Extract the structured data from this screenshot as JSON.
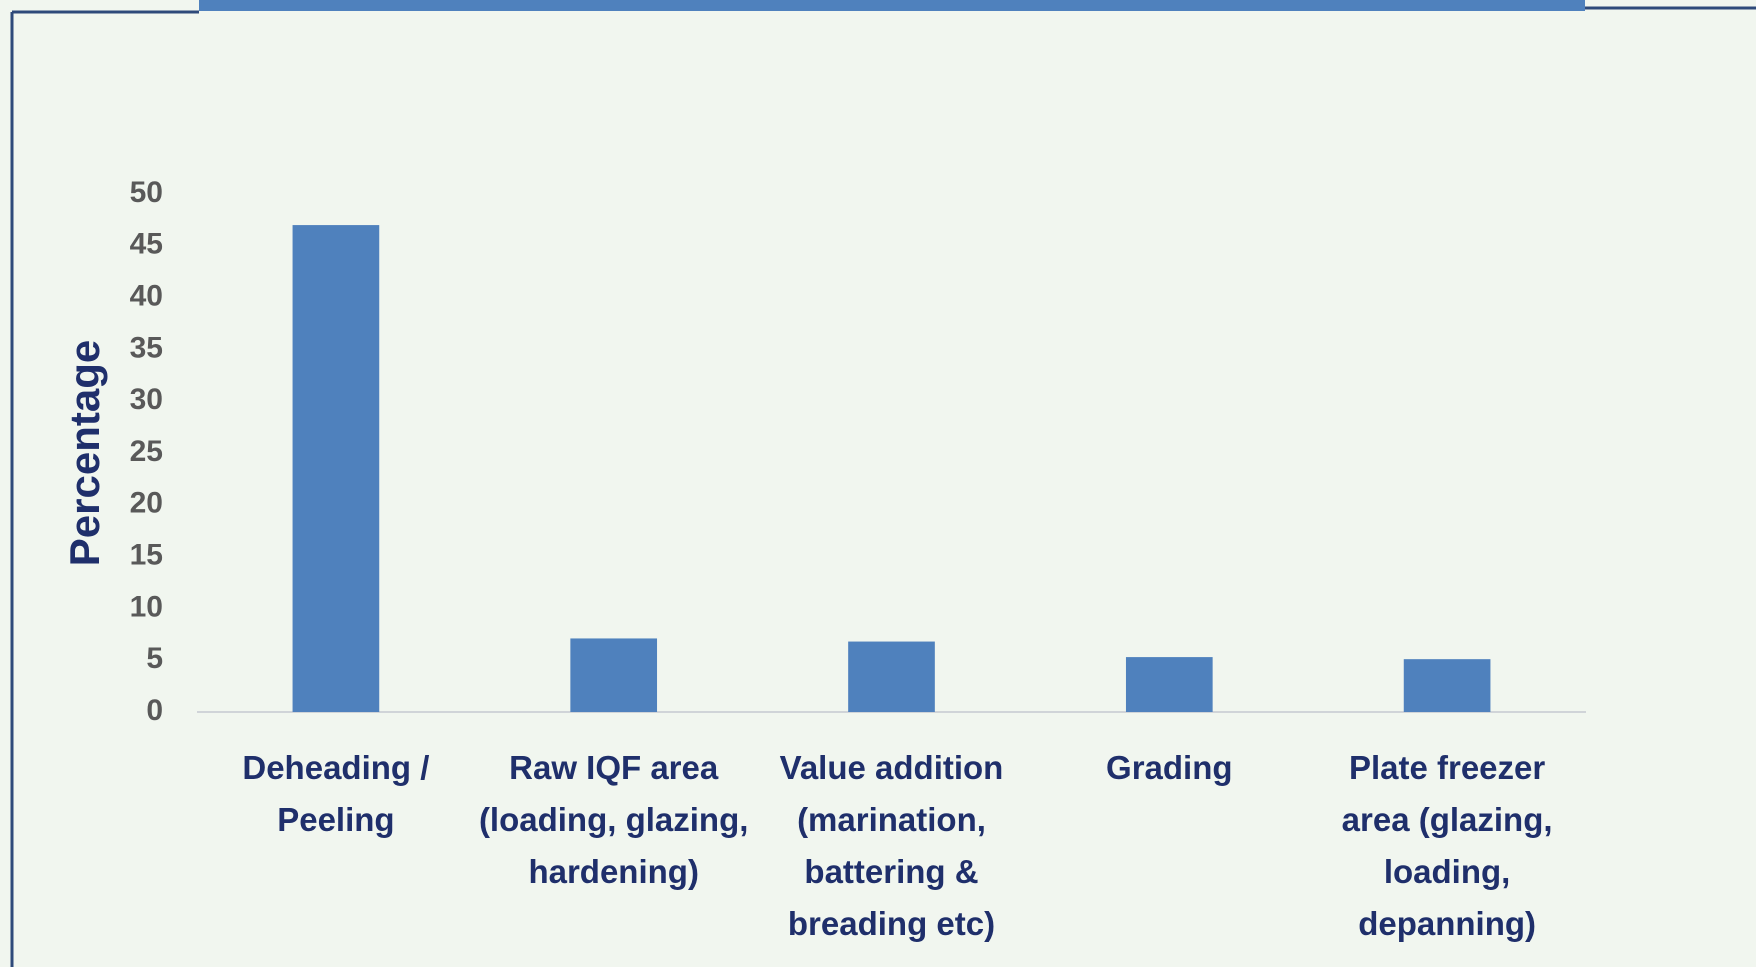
{
  "chart_data": {
    "type": "bar",
    "y_label": "Percentage",
    "categories": [
      "Deheading / Peeling",
      "Raw IQF area (loading, glazing, hardening)",
      "Value addition (marination, battering & breading etc)",
      "Grading",
      "Plate freezer area (glazing, loading, depanning)"
    ],
    "values": [
      47,
      7.1,
      6.8,
      5.3,
      5.1
    ],
    "color": "#4f81bd",
    "ylim": [
      0,
      50
    ],
    "yticks": [
      0,
      5,
      10,
      15,
      20,
      25,
      30,
      35,
      40,
      45,
      50
    ],
    "grid": false
  }
}
